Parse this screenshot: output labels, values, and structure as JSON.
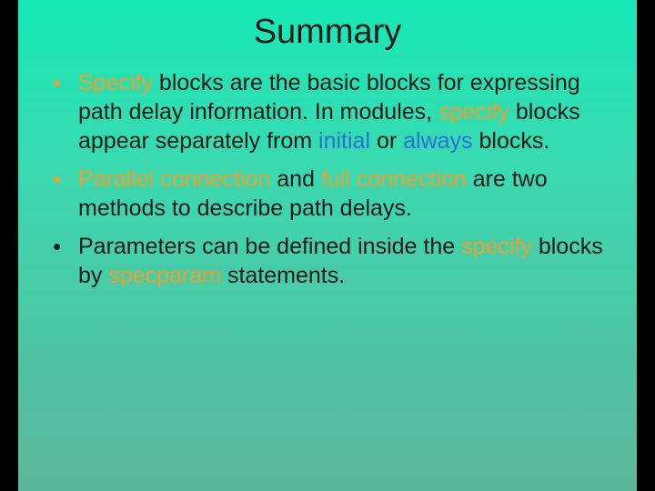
{
  "slide": {
    "title": "Summary",
    "title_fontsize": 38,
    "title_color": "#1a1a1a",
    "background_gradient_top": "#17e8b6",
    "background_gradient_bottom": "#5cb89a",
    "side_bar_color": "#000000",
    "body_fontsize": 25,
    "body_color": "#1a1a1a",
    "highlight_orange": "#e8a030",
    "highlight_blue": "#2a6fd6",
    "bullets": [
      {
        "bullet_color": "#e8a030",
        "runs": [
          {
            "text": "Specify",
            "style": "orange"
          },
          {
            "text": " blocks are the basic blocks for expressing path delay information. In modules, ",
            "style": "plain"
          },
          {
            "text": "specify",
            "style": "orange"
          },
          {
            "text": " blocks appear separately from ",
            "style": "plain"
          },
          {
            "text": "initial",
            "style": "blue"
          },
          {
            "text": " or ",
            "style": "plain"
          },
          {
            "text": "always",
            "style": "blue"
          },
          {
            "text": " blocks.",
            "style": "plain"
          }
        ]
      },
      {
        "bullet_color": "#e8a030",
        "runs": [
          {
            "text": "Parallel connection",
            "style": "orange"
          },
          {
            "text": " and ",
            "style": "plain"
          },
          {
            "text": "full connection",
            "style": "orange"
          },
          {
            "text": " are two methods to describe path delays.",
            "style": "plain"
          }
        ]
      },
      {
        "bullet_color": "#1a1a1a",
        "runs": [
          {
            "text": "Parameters can be defined inside the ",
            "style": "plain"
          },
          {
            "text": "specify",
            "style": "orange"
          },
          {
            "text": " blocks by ",
            "style": "plain"
          },
          {
            "text": "specparam",
            "style": "orange"
          },
          {
            "text": " statements.",
            "style": "plain"
          }
        ]
      }
    ]
  }
}
